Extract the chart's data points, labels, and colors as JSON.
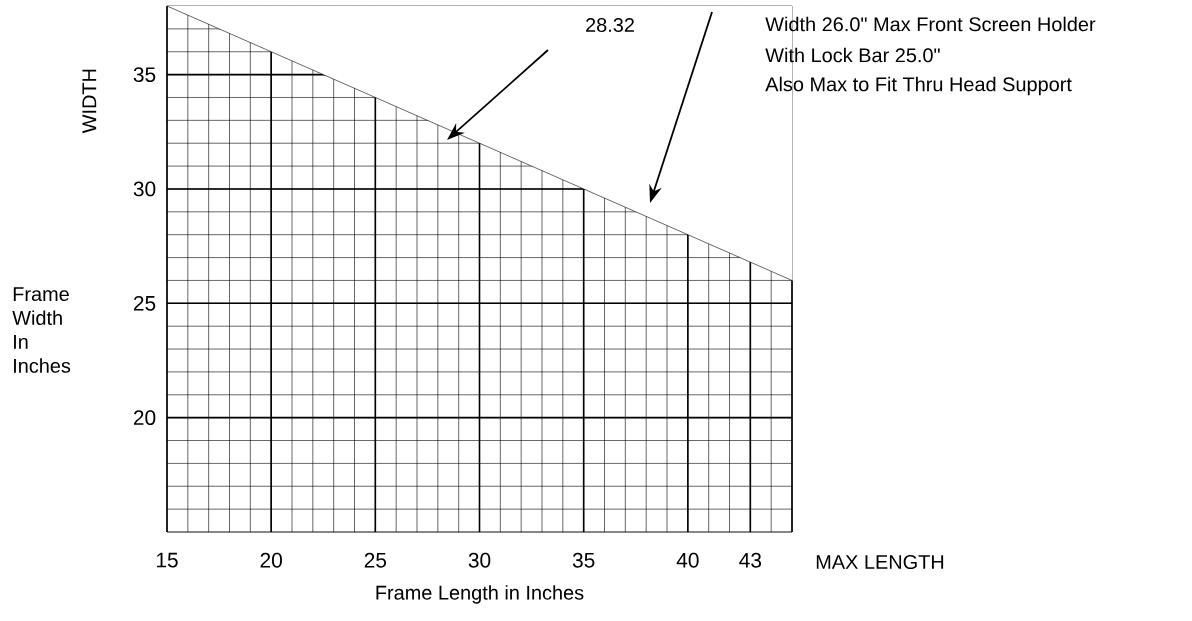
{
  "chart_data": {
    "type": "line",
    "x": [
      15,
      45
    ],
    "values": [
      38,
      26
    ],
    "color": "#000000",
    "xlim": [
      15,
      45
    ],
    "ylim": [
      15,
      38
    ],
    "xticks": [
      15,
      20,
      25,
      30,
      35,
      40,
      43
    ],
    "yticks": [
      20,
      25,
      30,
      35
    ],
    "grid": true,
    "line_style": "solid",
    "xlabel": "Frame Length in Inches",
    "ylabel": "WIDTH",
    "annotations": [
      "28.32",
      "Width 26.0\" Max Front Screen Holder",
      "With Lock Bar 25.0\"",
      "Also Max to Fit Thru Head Support",
      "Frame Width In Inches",
      "MAX LENGTH"
    ]
  }
}
